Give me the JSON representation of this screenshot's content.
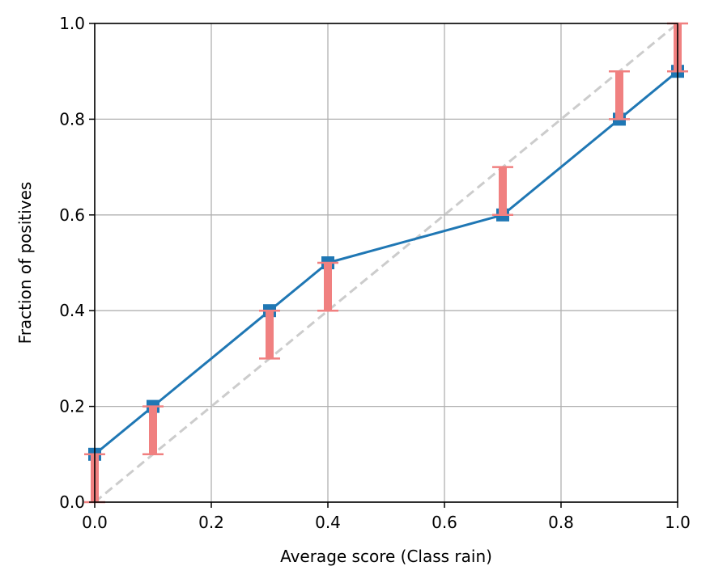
{
  "chart_data": {
    "type": "line",
    "title": "",
    "xlabel": "Average score (Class rain)",
    "ylabel": "Fraction of positives",
    "xlim": [
      0.0,
      1.0
    ],
    "ylim": [
      0.0,
      1.0
    ],
    "grid": true,
    "x_ticks": [
      "0.0",
      "0.2",
      "0.4",
      "0.6",
      "0.8",
      "1.0"
    ],
    "y_ticks": [
      "0.0",
      "0.2",
      "0.4",
      "0.6",
      "0.8",
      "1.0"
    ],
    "x_tick_values": [
      0.0,
      0.2,
      0.4,
      0.6,
      0.8,
      1.0
    ],
    "y_tick_values": [
      0.0,
      0.2,
      0.4,
      0.6,
      0.8,
      1.0
    ],
    "reference_line": {
      "x": [
        0.0,
        1.0
      ],
      "y": [
        0.0,
        1.0
      ],
      "style": "dashed",
      "color": "#cccccc"
    },
    "series": [
      {
        "x": [
          0.0,
          0.1,
          0.3,
          0.4,
          0.7,
          0.9,
          1.0
        ],
        "y": [
          0.1,
          0.2,
          0.4,
          0.5,
          0.6,
          0.8,
          0.9
        ],
        "color": "#1f77b4",
        "marker": "square"
      }
    ],
    "error_bars": [
      {
        "x": [
          0.0,
          0.1,
          0.3,
          0.4,
          0.7,
          0.9,
          1.0
        ],
        "low": [
          0.0,
          0.1,
          0.3,
          0.4,
          0.6,
          0.8,
          0.9
        ],
        "high": [
          0.1,
          0.2,
          0.4,
          0.5,
          0.7,
          0.9,
          1.0
        ],
        "color": "#f08080"
      }
    ]
  }
}
